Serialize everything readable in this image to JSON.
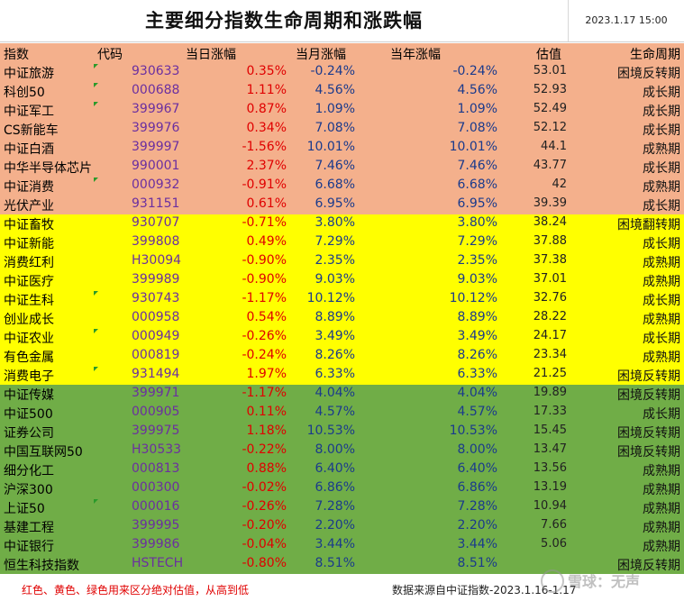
{
  "header": {
    "title": "主要细分指数生命周期和涨跌幅",
    "timestamp": "2023.1.17 15:00"
  },
  "columns": {
    "name": "指数",
    "code": "代码",
    "day": "当日涨幅",
    "month": "当月涨幅",
    "year": "当年涨幅",
    "valuation": "估值",
    "cycle": "生命周期"
  },
  "colors": {
    "red_group": "#f4b08c",
    "yellow_group": "#ffff00",
    "green_group": "#70ad47",
    "positive": "#e00000",
    "negative": "#e00000",
    "code": "#6b2fa0"
  },
  "rows": [
    {
      "name": "中证旅游",
      "code": "930633",
      "day": "0.35%",
      "month": "-0.24%",
      "year": "-0.24%",
      "valuation": "53.01",
      "cycle": "困境反转期",
      "group": "red",
      "flag": true
    },
    {
      "name": "科创50",
      "code": "000688",
      "day": "1.11%",
      "month": "4.56%",
      "year": "4.56%",
      "valuation": "52.93",
      "cycle": "成长期",
      "group": "red",
      "flag": true
    },
    {
      "name": "中证军工",
      "code": "399967",
      "day": "0.87%",
      "month": "1.09%",
      "year": "1.09%",
      "valuation": "52.49",
      "cycle": "成长期",
      "group": "red",
      "flag": true
    },
    {
      "name": "CS新能车",
      "code": "399976",
      "day": "0.34%",
      "month": "7.08%",
      "year": "7.08%",
      "valuation": "52.12",
      "cycle": "成长期",
      "group": "red",
      "flag": false
    },
    {
      "name": "中证白酒",
      "code": "399997",
      "day": "-1.56%",
      "month": "10.01%",
      "year": "10.01%",
      "valuation": "44.1",
      "cycle": "成熟期",
      "group": "red",
      "flag": false
    },
    {
      "name": "中华半导体芯片",
      "code": "990001",
      "day": "2.37%",
      "month": "7.46%",
      "year": "7.46%",
      "valuation": "43.77",
      "cycle": "成长期",
      "group": "red",
      "flag": false
    },
    {
      "name": "中证消费",
      "code": "000932",
      "day": "-0.91%",
      "month": "6.68%",
      "year": "6.68%",
      "valuation": "42",
      "cycle": "成熟期",
      "group": "red",
      "flag": true
    },
    {
      "name": "光伏产业",
      "code": "931151",
      "day": "0.61%",
      "month": "6.95%",
      "year": "6.95%",
      "valuation": "39.39",
      "cycle": "成长期",
      "group": "red",
      "flag": false
    },
    {
      "name": "中证畜牧",
      "code": "930707",
      "day": "-0.71%",
      "month": "3.80%",
      "year": "3.80%",
      "valuation": "38.24",
      "cycle": "困境翻转期",
      "group": "yellow",
      "flag": false
    },
    {
      "name": "中证新能",
      "code": "399808",
      "day": "0.49%",
      "month": "7.29%",
      "year": "7.29%",
      "valuation": "37.88",
      "cycle": "成长期",
      "group": "yellow",
      "flag": false
    },
    {
      "name": "消费红利",
      "code": "H30094",
      "day": "-0.90%",
      "month": "2.35%",
      "year": "2.35%",
      "valuation": "37.38",
      "cycle": "成熟期",
      "group": "yellow",
      "flag": false
    },
    {
      "name": "中证医疗",
      "code": "399989",
      "day": "-0.90%",
      "month": "9.03%",
      "year": "9.03%",
      "valuation": "37.01",
      "cycle": "成熟期",
      "group": "yellow",
      "flag": false
    },
    {
      "name": "中证生科",
      "code": "930743",
      "day": "-1.17%",
      "month": "10.12%",
      "year": "10.12%",
      "valuation": "32.76",
      "cycle": "成长期",
      "group": "yellow",
      "flag": true
    },
    {
      "name": "创业成长",
      "code": "000958",
      "day": "0.54%",
      "month": "8.89%",
      "year": "8.89%",
      "valuation": "28.22",
      "cycle": "成熟期",
      "group": "yellow",
      "flag": false
    },
    {
      "name": "中证农业",
      "code": "000949",
      "day": "-0.26%",
      "month": "3.49%",
      "year": "3.49%",
      "valuation": "24.17",
      "cycle": "成长期",
      "group": "yellow",
      "flag": true
    },
    {
      "name": "有色金属",
      "code": "000819",
      "day": "-0.24%",
      "month": "8.26%",
      "year": "8.26%",
      "valuation": "23.34",
      "cycle": "成熟期",
      "group": "yellow",
      "flag": false
    },
    {
      "name": "消费电子",
      "code": "931494",
      "day": "1.97%",
      "month": "6.33%",
      "year": "6.33%",
      "valuation": "21.25",
      "cycle": "困境反转期",
      "group": "yellow",
      "flag": true
    },
    {
      "name": "中证传媒",
      "code": "399971",
      "day": "-1.17%",
      "month": "4.04%",
      "year": "4.04%",
      "valuation": "19.89",
      "cycle": "困境反转期",
      "group": "green",
      "flag": false
    },
    {
      "name": "中证500",
      "code": "000905",
      "day": "0.11%",
      "month": "4.57%",
      "year": "4.57%",
      "valuation": "17.33",
      "cycle": "成长期",
      "group": "green",
      "flag": false
    },
    {
      "name": "证券公司",
      "code": "399975",
      "day": "1.18%",
      "month": "10.53%",
      "year": "10.53%",
      "valuation": "15.45",
      "cycle": "困境反转期",
      "group": "green",
      "flag": false
    },
    {
      "name": "中国互联网50",
      "code": "H30533",
      "day": "-0.22%",
      "month": "8.00%",
      "year": "8.00%",
      "valuation": "13.47",
      "cycle": "困境反转期",
      "group": "green",
      "flag": false
    },
    {
      "name": "细分化工",
      "code": "000813",
      "day": "0.88%",
      "month": "6.40%",
      "year": "6.40%",
      "valuation": "13.56",
      "cycle": "成熟期",
      "group": "green",
      "flag": false
    },
    {
      "name": "沪深300",
      "code": "000300",
      "day": "-0.02%",
      "month": "6.86%",
      "year": "6.86%",
      "valuation": "13.19",
      "cycle": "成熟期",
      "group": "green",
      "flag": false
    },
    {
      "name": "上证50",
      "code": "000016",
      "day": "-0.26%",
      "month": "7.28%",
      "year": "7.28%",
      "valuation": "10.94",
      "cycle": "成熟期",
      "group": "green",
      "flag": true
    },
    {
      "name": "基建工程",
      "code": "399995",
      "day": "-0.20%",
      "month": "2.20%",
      "year": "2.20%",
      "valuation": "7.66",
      "cycle": "成熟期",
      "group": "green",
      "flag": false
    },
    {
      "name": "中证银行",
      "code": "399986",
      "day": "-0.04%",
      "month": "3.44%",
      "year": "3.44%",
      "valuation": "5.06",
      "cycle": "成熟期",
      "group": "green",
      "flag": false
    },
    {
      "name": "恒生科技指数",
      "code": "HSTECH",
      "day": "-0.80%",
      "month": "8.51%",
      "year": "8.51%",
      "valuation": "",
      "cycle": "困境反转期",
      "group": "green",
      "flag": false
    }
  ],
  "footer": {
    "note": "红色、黄色、绿色用来区分绝对估值，从高到低",
    "source": "数据来源自中证指数-2023.1.16-1.17"
  },
  "watermark": "雪球：无声"
}
